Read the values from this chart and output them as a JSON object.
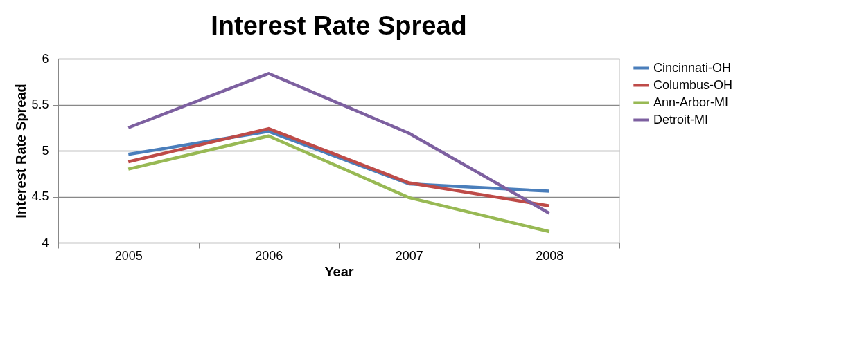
{
  "chart_data": {
    "type": "line",
    "title": "Interest Rate Spread",
    "xlabel": "Year",
    "ylabel": "Interest Rate Spread",
    "categories": [
      "2005",
      "2006",
      "2007",
      "2008"
    ],
    "series": [
      {
        "name": "Cincinnati-OH",
        "color": "#4a7ebb",
        "values": [
          4.96,
          5.21,
          4.64,
          4.56
        ]
      },
      {
        "name": "Columbus-OH",
        "color": "#be4b48",
        "values": [
          4.88,
          5.24,
          4.65,
          4.4
        ]
      },
      {
        "name": "Ann-Arbor-MI",
        "color": "#98b954",
        "values": [
          4.8,
          5.16,
          4.49,
          4.12
        ]
      },
      {
        "name": "Detroit-MI",
        "color": "#7d60a0",
        "values": [
          5.25,
          5.84,
          5.19,
          4.32
        ]
      }
    ],
    "ylim": [
      4,
      6
    ],
    "yticks": [
      4,
      4.5,
      5,
      5.5,
      6
    ],
    "grid": "y",
    "legend": "right",
    "marker": "none",
    "line_style": "solid"
  }
}
